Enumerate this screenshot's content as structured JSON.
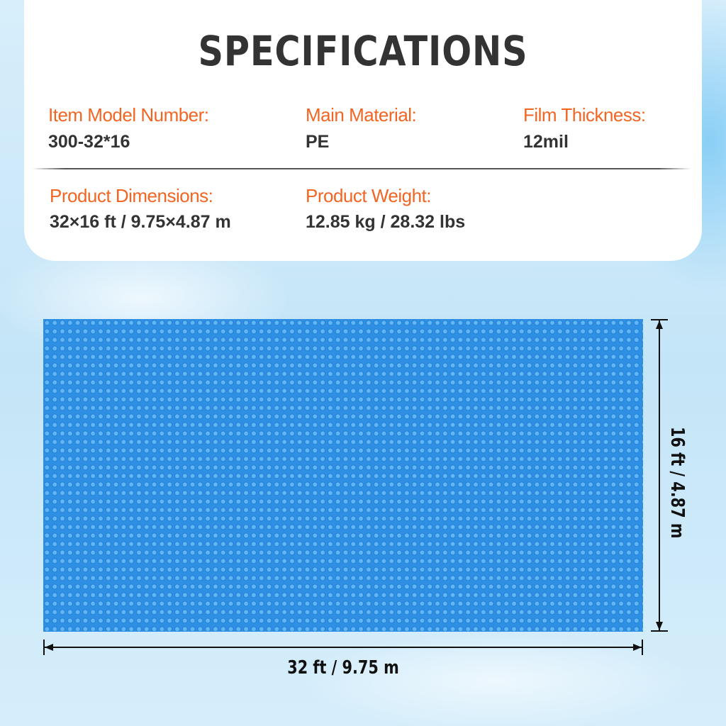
{
  "title": "SPECIFICATIONS",
  "specs": [
    {
      "label": "Item Model Number:",
      "value": "300-32*16"
    },
    {
      "label": "Main Material:",
      "value": "PE"
    },
    {
      "label": "Film Thickness:",
      "value": "12mil"
    },
    {
      "label": "Product Dimensions:",
      "value": "32×16 ft / 9.75×4.87 m"
    },
    {
      "label": "Product Weight:",
      "value": "12.85 kg / 28.32 lbs"
    }
  ],
  "dimensions": {
    "height": "16 ft / 4.87 m",
    "width": "32 ft / 9.75 m"
  },
  "colors": {
    "label": "#f26522",
    "value": "#333333",
    "cover": "#2e8fe3"
  }
}
